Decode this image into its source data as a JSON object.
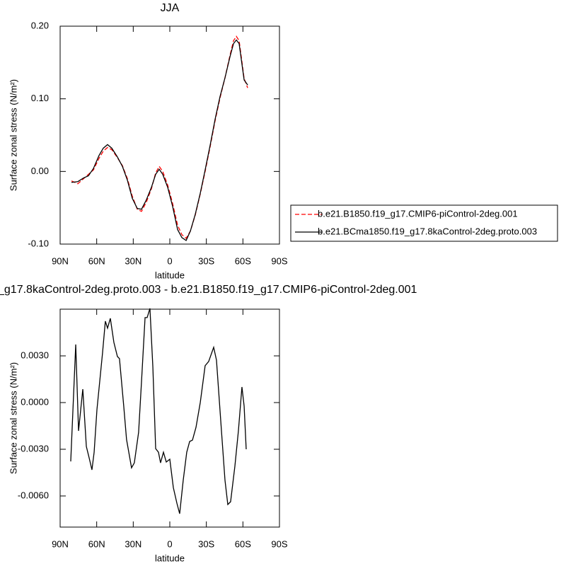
{
  "chart_data": [
    {
      "type": "line",
      "title": "JJA",
      "xlabel": "latitude",
      "ylabel": "Surface zonal stress (N/m²)",
      "x": [
        80.7,
        75.5,
        70.8,
        66.8,
        62.7,
        58.1,
        54.6,
        51.1,
        47.6,
        43.0,
        38.9,
        34.8,
        30.8,
        26.7,
        23.2,
        19.2,
        15.1,
        11.6,
        8.7,
        5.8,
        1.7,
        -2.3,
        -6.4,
        -9.9,
        -13.4,
        -16.9,
        -20.9,
        -25.0,
        -29.0,
        -33.1,
        -37.2,
        -41.2,
        -45.3,
        -49.4,
        -52.3,
        -54.6,
        -56.9,
        -61.0,
        -63.9
      ],
      "series": [
        {
          "name": "b.e21.B1850.f19_g17.CMIP6-piControl-2deg.001",
          "color": "#ff0000",
          "dashed": true,
          "values": [
            -0.013,
            -0.017,
            -0.01,
            -0.004,
            0.002,
            0.018,
            0.028,
            0.033,
            0.03,
            0.019,
            0.008,
            -0.01,
            -0.034,
            -0.052,
            -0.055,
            -0.042,
            -0.024,
            -0.002,
            0.007,
            0.0,
            -0.019,
            -0.044,
            -0.074,
            -0.087,
            -0.092,
            -0.082,
            -0.06,
            -0.031,
            0.0,
            0.034,
            0.07,
            0.101,
            0.129,
            0.16,
            0.18,
            0.186,
            0.18,
            0.128,
            0.115
          ]
        },
        {
          "name": "b.e21.BCma1850.f19_g17.8kaControl-2deg.proto.003",
          "color": "#000000",
          "dashed": false,
          "values": [
            -0.015,
            -0.014,
            -0.009,
            -0.006,
            0.004,
            0.022,
            0.032,
            0.037,
            0.032,
            0.02,
            0.007,
            -0.012,
            -0.037,
            -0.051,
            -0.052,
            -0.039,
            -0.022,
            -0.004,
            0.003,
            -0.004,
            -0.022,
            -0.048,
            -0.08,
            -0.091,
            -0.095,
            -0.082,
            -0.059,
            -0.03,
            0.002,
            0.036,
            0.072,
            0.103,
            0.129,
            0.158,
            0.176,
            0.181,
            0.176,
            0.126,
            0.119
          ]
        }
      ],
      "xlim": [
        90,
        -90
      ],
      "xticks": [
        {
          "value": 90,
          "label": "90N"
        },
        {
          "value": 60,
          "label": "60N"
        },
        {
          "value": 30,
          "label": "30N"
        },
        0,
        {
          "value": -30,
          "label": "30S"
        },
        {
          "value": -60,
          "label": "60S"
        },
        {
          "value": -90,
          "label": "90S"
        }
      ],
      "ylim": [
        -0.1,
        0.2
      ],
      "yticks": [
        {
          "value": -0.1,
          "label": "-0.10"
        },
        {
          "value": 0,
          "label": "0.00"
        },
        {
          "value": 0.1,
          "label": "0.10"
        },
        {
          "value": 0.2,
          "label": "0.20"
        }
      ]
    },
    {
      "type": "line",
      "title": "_g17.8kaControl-2deg.proto.003 - b.e21.B1850.f19_g17.CMIP6-piControl-2deg.001",
      "xlabel": "latitude",
      "ylabel": "Surface zonal stress (N/m²)",
      "x": [
        81.3,
        77.2,
        74.9,
        71.4,
        68.5,
        66.2,
        63.9,
        62.1,
        59.8,
        55.2,
        52.9,
        51.1,
        48.8,
        45.9,
        43.0,
        41.3,
        37.8,
        35.5,
        31.4,
        29.1,
        25.6,
        23.2,
        20.3,
        18.6,
        16.3,
        13.9,
        11.6,
        9.3,
        7.6,
        5.2,
        2.9,
        0.0,
        -2.9,
        -5.8,
        -8.1,
        -11.0,
        -13.9,
        -16.3,
        -18.6,
        -21.5,
        -25.0,
        -29.0,
        -31.9,
        -36.0,
        -38.3,
        -42.4,
        -45.3,
        -47.6,
        -49.9,
        -53.4,
        -56.3,
        -59.2,
        -61.0,
        -62.7
      ],
      "values": [
        -0.00378,
        0.00373,
        -0.00182,
        0.00086,
        -0.00282,
        -0.00355,
        -0.00432,
        -0.00319,
        -0.00046,
        0.00319,
        0.00523,
        0.00478,
        0.00541,
        0.00387,
        0.00296,
        0.00282,
        -0.00023,
        -0.00237,
        -0.00419,
        -0.00387,
        -0.00191,
        0.00137,
        0.00546,
        0.00546,
        0.00605,
        0.00228,
        -0.00296,
        -0.00319,
        -0.00387,
        -0.00319,
        -0.00382,
        -0.00364,
        -0.00546,
        -0.00646,
        -0.00714,
        -0.005,
        -0.00319,
        -0.0025,
        -0.00241,
        -0.00159,
        0.0,
        0.00237,
        0.00264,
        0.00355,
        0.00273,
        -0.00182,
        -0.005,
        -0.00655,
        -0.00637,
        -0.0041,
        -0.00182,
        0.001,
        -0.00023,
        -0.003
      ],
      "color": "#000000",
      "xlim": [
        90,
        -90
      ],
      "xticks": [
        {
          "value": 90,
          "label": "90N"
        },
        {
          "value": 60,
          "label": "60N"
        },
        {
          "value": 30,
          "label": "30N"
        },
        0,
        {
          "value": -30,
          "label": "30S"
        },
        {
          "value": -60,
          "label": "60S"
        },
        {
          "value": -90,
          "label": "90S"
        }
      ],
      "ylim": [
        -0.008,
        0.006
      ],
      "yticks": [
        {
          "value": -0.006,
          "label": "-0.0060"
        },
        {
          "value": -0.003,
          "label": "-0.0030"
        },
        {
          "value": 0,
          "label": "0.0000"
        },
        {
          "value": 0.003,
          "label": "0.0030"
        }
      ]
    }
  ]
}
